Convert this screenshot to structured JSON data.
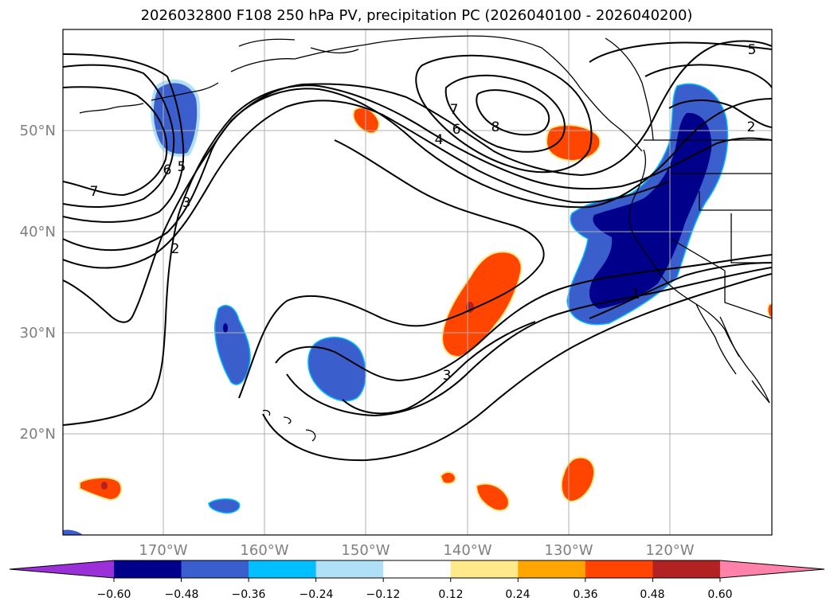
{
  "title": "2026032800 F108 250 hPa PV, precipitation PC (2026040100 - 2026040200)",
  "map": {
    "lon_range": [
      -180,
      -110
    ],
    "lat_range": [
      10,
      60
    ],
    "lon_ticks": [
      "170°W",
      "160°W",
      "150°W",
      "140°W",
      "130°W",
      "120°W"
    ],
    "lat_ticks": [
      "20°N",
      "30°N",
      "40°N",
      "50°N"
    ],
    "gridlines": true,
    "fields": {
      "contours": "250 hPa PV",
      "shading": "precipitation PC"
    }
  },
  "contour_labels": [
    "7",
    "6",
    "5",
    "3",
    "2",
    "7",
    "6",
    "4",
    "8",
    "5",
    "2",
    "1",
    "3"
  ],
  "colorbar": {
    "tick_labels": [
      "−0.60",
      "−0.48",
      "−0.36",
      "−0.24",
      "−0.12",
      "0.12",
      "0.24",
      "0.36",
      "0.48",
      "0.60"
    ],
    "colors": [
      "#9b30d9",
      "#00008b",
      "#3a5fcd",
      "#00bfff",
      "#b0e0f8",
      "#ffffff",
      "#ffe98a",
      "#ffa500",
      "#ff4500",
      "#b22222",
      "#ff82ab"
    ],
    "extend": "both"
  }
}
